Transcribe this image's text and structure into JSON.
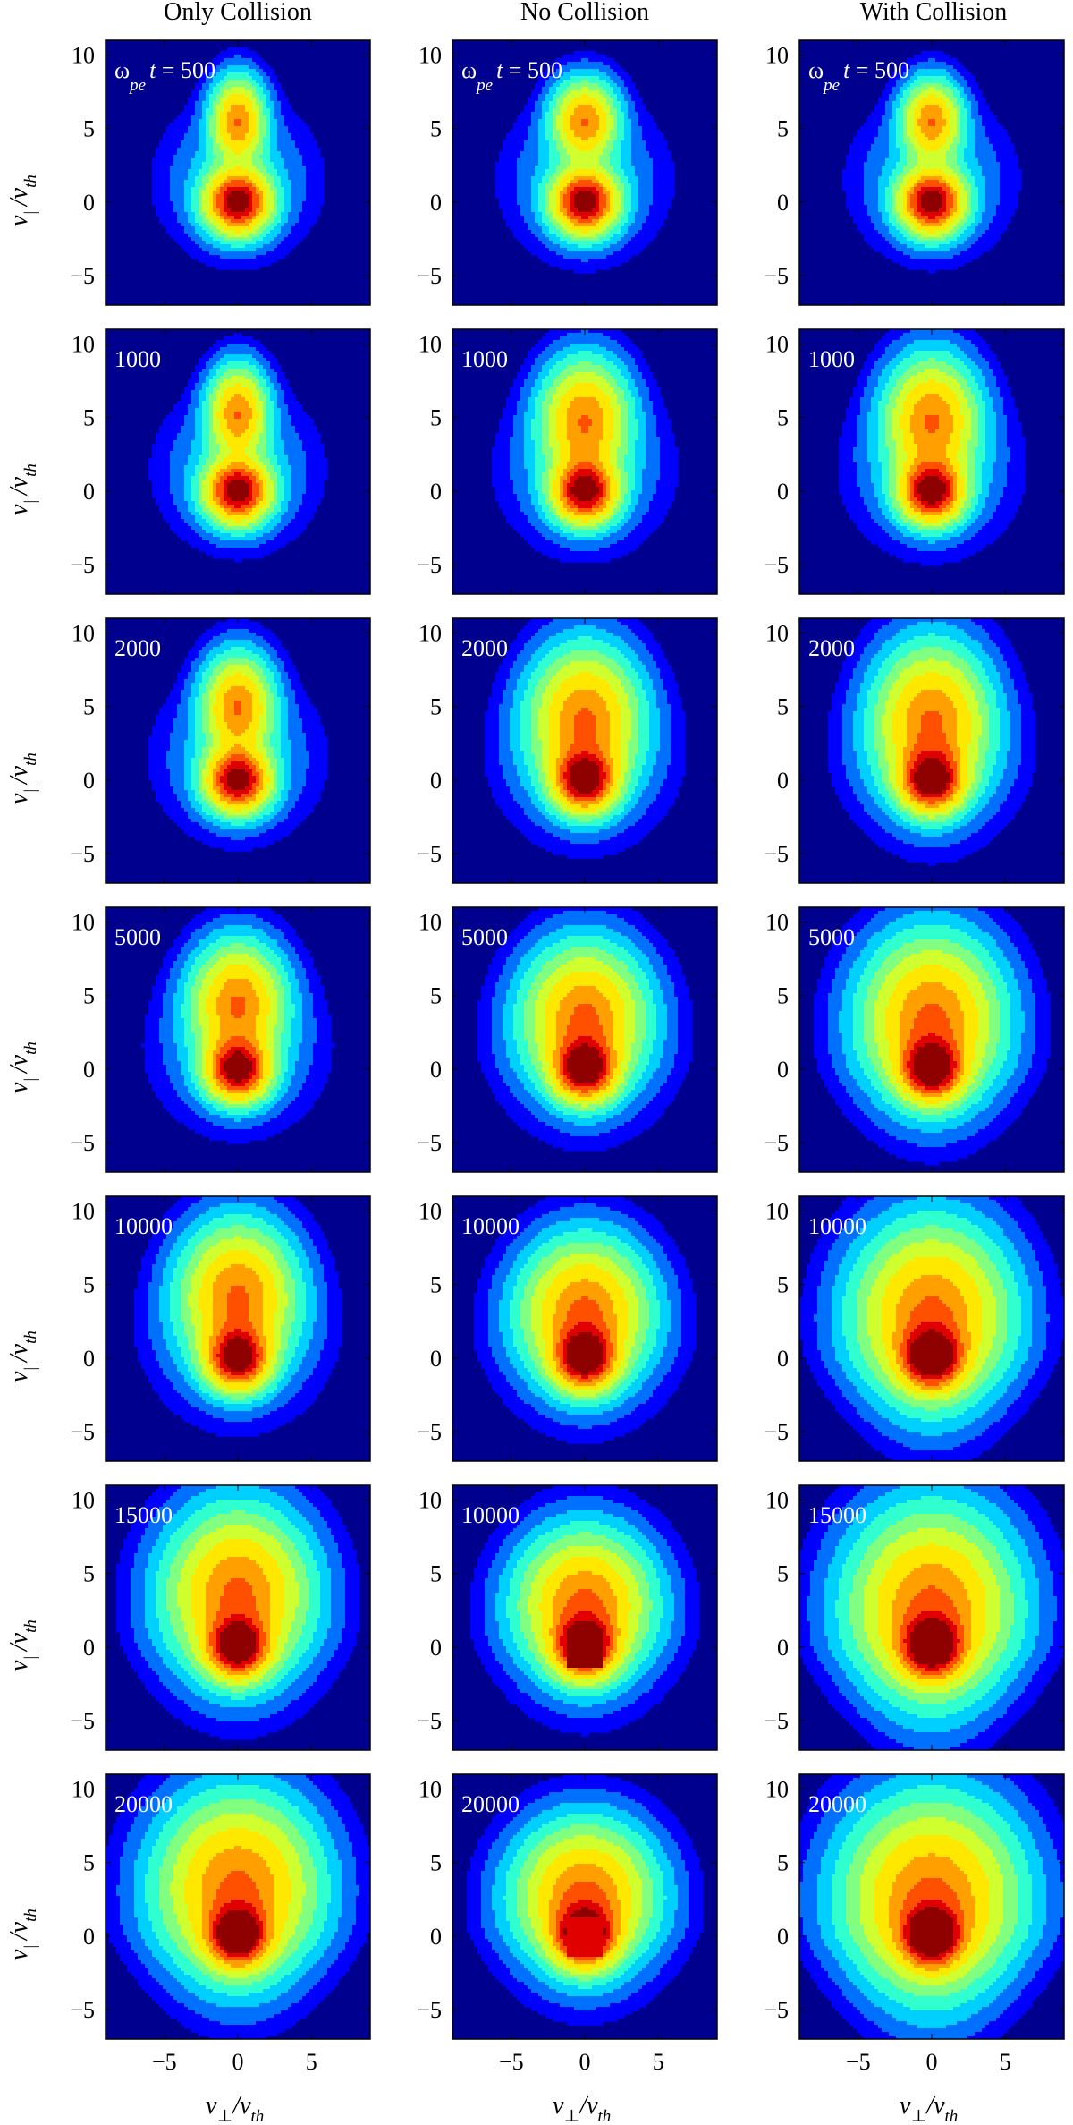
{
  "chart_data": {
    "type": "heatmap",
    "columns": [
      "Only Collision",
      "No Collision",
      "With Collision"
    ],
    "xlabel": {
      "main": "v",
      "sub": "⊥",
      "den": "/v",
      "den_sub": "th"
    },
    "ylabel": {
      "main": "v",
      "sub": "||",
      "den": "/v",
      "den_sub": "th"
    },
    "time_prefix": {
      "main": "ω",
      "sub": "pe",
      "rest": "t = "
    },
    "xticks": [
      "−5",
      "0",
      "5"
    ],
    "yticks": [
      "10",
      "5",
      "0",
      "−5"
    ],
    "xlim": [
      -9,
      9
    ],
    "ylim": [
      -7,
      11
    ],
    "grid": false,
    "colormap": [
      "#00008f",
      "#0000ff",
      "#0070ff",
      "#00d0ff",
      "#30ffd0",
      "#80ff80",
      "#d0ff30",
      "#ffe800",
      "#ffa000",
      "#ff5000",
      "#e00000",
      "#8f0000"
    ],
    "times": [
      [
        "500",
        "500",
        "500"
      ],
      [
        "1000",
        "1000",
        "1000"
      ],
      [
        "2000",
        "2000",
        "2000"
      ],
      [
        "5000",
        "5000",
        "5000"
      ],
      [
        "10000",
        "10000",
        "10000"
      ],
      [
        "15000",
        "10000",
        "15000"
      ],
      [
        "20000",
        "20000",
        "20000"
      ]
    ],
    "rows": [
      [
        {
          "core_w": 3.0,
          "beam_y": 5.5,
          "beam_w": 1.6,
          "spread": 1.0,
          "flat": 0
        },
        {
          "core_w": 3.0,
          "beam_y": 5.5,
          "beam_w": 1.5,
          "spread": 1.2,
          "flat": 0
        },
        {
          "core_w": 3.0,
          "beam_y": 5.5,
          "beam_w": 1.5,
          "spread": 1.1,
          "flat": 0
        }
      ],
      [
        {
          "core_w": 3.0,
          "beam_y": 5.3,
          "beam_w": 1.7,
          "spread": 1.1,
          "flat": 0
        },
        {
          "core_w": 3.0,
          "beam_y": 4.8,
          "beam_w": 2.2,
          "spread": 1.6,
          "flat": 0
        },
        {
          "core_w": 3.0,
          "beam_y": 4.8,
          "beam_w": 2.3,
          "spread": 1.7,
          "flat": 0
        }
      ],
      [
        {
          "core_w": 3.0,
          "beam_y": 5.0,
          "beam_w": 1.9,
          "spread": 1.3,
          "flat": 0
        },
        {
          "core_w": 3.0,
          "beam_y": 4.2,
          "beam_w": 2.6,
          "spread": 2.0,
          "flat": 0
        },
        {
          "core_w": 3.0,
          "beam_y": 4.0,
          "beam_w": 2.8,
          "spread": 2.1,
          "flat": 0
        }
      ],
      [
        {
          "core_w": 3.0,
          "beam_y": 4.5,
          "beam_w": 2.2,
          "spread": 1.7,
          "flat": 0
        },
        {
          "core_w": 3.0,
          "beam_y": 3.6,
          "beam_w": 2.6,
          "spread": 2.2,
          "flat": 0
        },
        {
          "core_w": 3.0,
          "beam_y": 3.5,
          "beam_w": 3.0,
          "spread": 2.5,
          "flat": 0
        }
      ],
      [
        {
          "core_w": 3.0,
          "beam_y": 4.3,
          "beam_w": 2.6,
          "spread": 2.1,
          "flat": 0
        },
        {
          "core_w": 3.0,
          "beam_y": 3.2,
          "beam_w": 2.6,
          "spread": 2.3,
          "flat": 0
        },
        {
          "core_w": 3.0,
          "beam_y": 3.0,
          "beam_w": 3.3,
          "spread": 2.8,
          "flat": 0
        }
      ],
      [
        {
          "core_w": 3.0,
          "beam_y": 3.8,
          "beam_w": 3.0,
          "spread": 2.6,
          "flat": 0
        },
        {
          "core_w": 3.0,
          "beam_y": 3.0,
          "beam_w": 2.6,
          "spread": 2.4,
          "flat": 1
        },
        {
          "core_w": 3.0,
          "beam_y": 2.8,
          "beam_w": 3.5,
          "spread": 3.0,
          "flat": 0
        }
      ],
      [
        {
          "core_w": 3.0,
          "beam_y": 3.4,
          "beam_w": 3.3,
          "spread": 2.9,
          "flat": 0
        },
        {
          "core_w": 3.0,
          "beam_y": 2.8,
          "beam_w": 2.6,
          "spread": 2.5,
          "flat": 2
        },
        {
          "core_w": 3.0,
          "beam_y": 2.6,
          "beam_w": 3.6,
          "spread": 3.2,
          "flat": 0
        }
      ]
    ]
  }
}
